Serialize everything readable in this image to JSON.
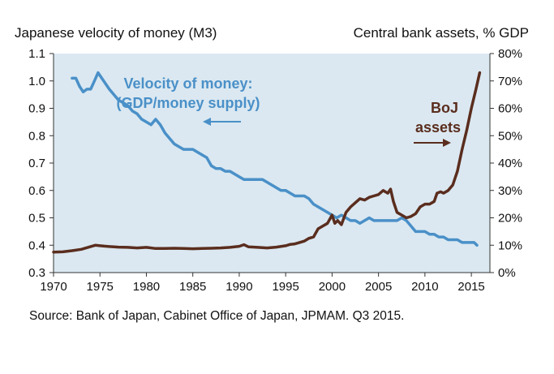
{
  "chart_data": {
    "type": "line",
    "left_axis_title": "Japanese velocity of money (M3)",
    "right_axis_title": "Central bank assets,  % GDP",
    "x_ticks": [
      "1970",
      "1975",
      "1980",
      "1985",
      "1990",
      "1995",
      "2000",
      "2005",
      "2010",
      "2015"
    ],
    "xlim": [
      1970,
      2017
    ],
    "y_left_ticks": [
      "0.3",
      "0.4",
      "0.5",
      "0.6",
      "0.7",
      "0.8",
      "0.9",
      "1.0",
      "1.1"
    ],
    "ylim_left": [
      0.3,
      1.1
    ],
    "y_right_ticks": [
      "0%",
      "10%",
      "20%",
      "30%",
      "40%",
      "50%",
      "60%",
      "70%",
      "80%"
    ],
    "ylim_right": [
      0,
      80
    ],
    "grid": false,
    "plot_background": "#dbe8f1",
    "series": [
      {
        "name": "Velocity of money:",
        "axis": "left",
        "color": "#4a90c8",
        "points": [
          [
            1972.0,
            1.01
          ],
          [
            1972.4,
            1.01
          ],
          [
            1972.8,
            0.98
          ],
          [
            1973.2,
            0.96
          ],
          [
            1973.6,
            0.97
          ],
          [
            1974.0,
            0.97
          ],
          [
            1974.4,
            1.0
          ],
          [
            1974.8,
            1.03
          ],
          [
            1975.2,
            1.01
          ],
          [
            1975.6,
            0.99
          ],
          [
            1976.0,
            0.97
          ],
          [
            1976.5,
            0.95
          ],
          [
            1977.0,
            0.93
          ],
          [
            1977.5,
            0.92
          ],
          [
            1978.0,
            0.91
          ],
          [
            1978.5,
            0.89
          ],
          [
            1979.0,
            0.88
          ],
          [
            1979.5,
            0.86
          ],
          [
            1980.0,
            0.85
          ],
          [
            1980.5,
            0.84
          ],
          [
            1981.0,
            0.86
          ],
          [
            1981.5,
            0.84
          ],
          [
            1982.0,
            0.81
          ],
          [
            1982.5,
            0.79
          ],
          [
            1983.0,
            0.77
          ],
          [
            1983.5,
            0.76
          ],
          [
            1984.0,
            0.75
          ],
          [
            1984.5,
            0.75
          ],
          [
            1985.0,
            0.75
          ],
          [
            1985.5,
            0.74
          ],
          [
            1986.0,
            0.73
          ],
          [
            1986.5,
            0.72
          ],
          [
            1987.0,
            0.69
          ],
          [
            1987.5,
            0.68
          ],
          [
            1988.0,
            0.68
          ],
          [
            1988.5,
            0.67
          ],
          [
            1989.0,
            0.67
          ],
          [
            1989.5,
            0.66
          ],
          [
            1990.0,
            0.65
          ],
          [
            1990.5,
            0.64
          ],
          [
            1991.0,
            0.64
          ],
          [
            1991.5,
            0.64
          ],
          [
            1992.0,
            0.64
          ],
          [
            1992.5,
            0.64
          ],
          [
            1993.0,
            0.63
          ],
          [
            1993.5,
            0.62
          ],
          [
            1994.0,
            0.61
          ],
          [
            1994.5,
            0.6
          ],
          [
            1995.0,
            0.6
          ],
          [
            1995.5,
            0.59
          ],
          [
            1996.0,
            0.58
          ],
          [
            1996.5,
            0.58
          ],
          [
            1997.0,
            0.58
          ],
          [
            1997.5,
            0.57
          ],
          [
            1998.0,
            0.55
          ],
          [
            1998.5,
            0.54
          ],
          [
            1999.0,
            0.53
          ],
          [
            1999.5,
            0.52
          ],
          [
            2000.0,
            0.51
          ],
          [
            2000.5,
            0.5
          ],
          [
            2001.0,
            0.51
          ],
          [
            2001.5,
            0.5
          ],
          [
            2002.0,
            0.49
          ],
          [
            2002.5,
            0.49
          ],
          [
            2003.0,
            0.48
          ],
          [
            2003.5,
            0.49
          ],
          [
            2004.0,
            0.5
          ],
          [
            2004.5,
            0.49
          ],
          [
            2005.0,
            0.49
          ],
          [
            2005.5,
            0.49
          ],
          [
            2006.0,
            0.49
          ],
          [
            2006.5,
            0.49
          ],
          [
            2007.0,
            0.49
          ],
          [
            2007.5,
            0.5
          ],
          [
            2008.0,
            0.49
          ],
          [
            2008.5,
            0.47
          ],
          [
            2009.0,
            0.45
          ],
          [
            2009.5,
            0.45
          ],
          [
            2010.0,
            0.45
          ],
          [
            2010.5,
            0.44
          ],
          [
            2011.0,
            0.44
          ],
          [
            2011.5,
            0.43
          ],
          [
            2012.0,
            0.43
          ],
          [
            2012.5,
            0.42
          ],
          [
            2013.0,
            0.42
          ],
          [
            2013.5,
            0.42
          ],
          [
            2014.0,
            0.41
          ],
          [
            2014.5,
            0.41
          ],
          [
            2015.0,
            0.41
          ],
          [
            2015.3,
            0.41
          ],
          [
            2015.6,
            0.4
          ]
        ]
      },
      {
        "name": "BoJ",
        "axis": "right",
        "color": "#5a2d1e",
        "points": [
          [
            1970.0,
            7.5
          ],
          [
            1971.0,
            7.6
          ],
          [
            1972.0,
            8.0
          ],
          [
            1973.0,
            8.5
          ],
          [
            1974.0,
            9.5
          ],
          [
            1974.5,
            10.0
          ],
          [
            1975.0,
            9.8
          ],
          [
            1976.0,
            9.5
          ],
          [
            1977.0,
            9.3
          ],
          [
            1978.0,
            9.2
          ],
          [
            1979.0,
            9.0
          ],
          [
            1980.0,
            9.2
          ],
          [
            1981.0,
            8.8
          ],
          [
            1982.0,
            8.8
          ],
          [
            1983.0,
            8.9
          ],
          [
            1984.0,
            8.8
          ],
          [
            1985.0,
            8.7
          ],
          [
            1986.0,
            8.8
          ],
          [
            1987.0,
            8.9
          ],
          [
            1988.0,
            9.0
          ],
          [
            1989.0,
            9.2
          ],
          [
            1990.0,
            9.6
          ],
          [
            1990.5,
            10.2
          ],
          [
            1991.0,
            9.4
          ],
          [
            1992.0,
            9.2
          ],
          [
            1993.0,
            9.0
          ],
          [
            1994.0,
            9.3
          ],
          [
            1995.0,
            9.8
          ],
          [
            1995.5,
            10.3
          ],
          [
            1996.0,
            10.5
          ],
          [
            1996.5,
            11.0
          ],
          [
            1997.0,
            11.5
          ],
          [
            1997.5,
            12.5
          ],
          [
            1998.0,
            13.0
          ],
          [
            1998.5,
            16.0
          ],
          [
            1999.0,
            17.0
          ],
          [
            1999.5,
            18.0
          ],
          [
            2000.0,
            21.0
          ],
          [
            2000.3,
            18.0
          ],
          [
            2000.6,
            19.0
          ],
          [
            2001.0,
            17.5
          ],
          [
            2001.5,
            22.0
          ],
          [
            2002.0,
            24.0
          ],
          [
            2002.5,
            25.5
          ],
          [
            2003.0,
            27.0
          ],
          [
            2003.5,
            26.5
          ],
          [
            2004.0,
            27.5
          ],
          [
            2004.5,
            28.0
          ],
          [
            2005.0,
            28.5
          ],
          [
            2005.5,
            30.0
          ],
          [
            2006.0,
            29.0
          ],
          [
            2006.3,
            30.5
          ],
          [
            2006.6,
            26.0
          ],
          [
            2007.0,
            22.0
          ],
          [
            2007.5,
            21.0
          ],
          [
            2008.0,
            20.0
          ],
          [
            2008.5,
            20.5
          ],
          [
            2009.0,
            21.5
          ],
          [
            2009.5,
            24.0
          ],
          [
            2010.0,
            25.0
          ],
          [
            2010.5,
            25.0
          ],
          [
            2011.0,
            26.0
          ],
          [
            2011.3,
            29.0
          ],
          [
            2011.7,
            29.5
          ],
          [
            2012.0,
            29.0
          ],
          [
            2012.5,
            30.0
          ],
          [
            2013.0,
            32.0
          ],
          [
            2013.5,
            37.0
          ],
          [
            2014.0,
            45.0
          ],
          [
            2014.5,
            52.0
          ],
          [
            2015.0,
            60.0
          ],
          [
            2015.5,
            67.0
          ],
          [
            2015.9,
            73.0
          ]
        ]
      }
    ],
    "annotations": {
      "velocity_line1": "Velocity of money:",
      "velocity_line2": "(GDP/money supply)",
      "boj_line1": "BoJ",
      "boj_line2": "assets"
    },
    "source": "Source: Bank of Japan, Cabinet Office of Japan, JPMAM. Q3 2015."
  }
}
